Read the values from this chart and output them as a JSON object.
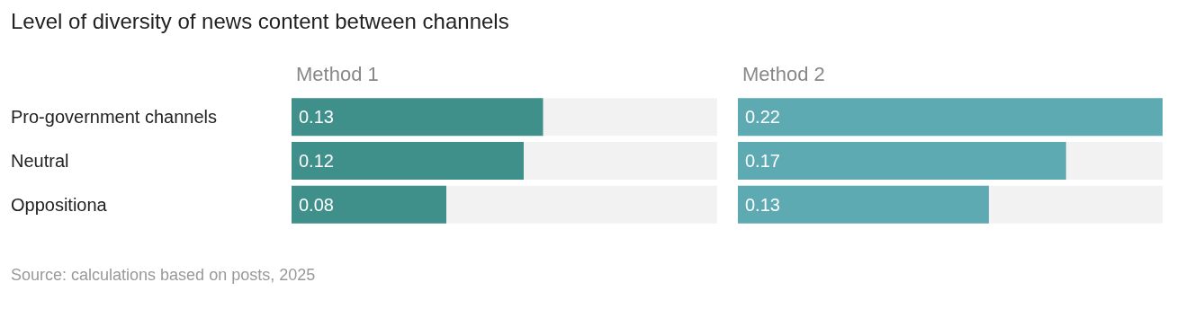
{
  "chart_data": [
    {
      "type": "bar",
      "orientation": "horizontal",
      "title": "Level of diversity of news content between channels",
      "subtitle": "Method 1",
      "categories": [
        "Pro-government channels",
        "Neutral",
        "Oppositiona"
      ],
      "values": [
        0.13,
        0.12,
        0.08
      ],
      "color": "#3f8f8a",
      "data_labels": true,
      "tick_labels": "y",
      "annotations": [
        "Source: calculations based on posts, 2025"
      ]
    },
    {
      "type": "bar",
      "orientation": "horizontal",
      "subtitle": "Method 2",
      "categories": [
        null,
        null,
        null
      ],
      "values": [
        0.22,
        0.17,
        0.13
      ],
      "color": "#5eaab3",
      "data_labels": true
    }
  ]
}
